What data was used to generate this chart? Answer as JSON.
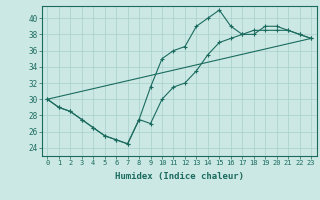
{
  "xlabel": "Humidex (Indice chaleur)",
  "bg_color": "#cce8e5",
  "line_color": "#1a6b5e",
  "grid_color": "#a8d0cc",
  "xlim": [
    -0.5,
    23.5
  ],
  "ylim": [
    23.0,
    41.5
  ],
  "xticks": [
    0,
    1,
    2,
    3,
    4,
    5,
    6,
    7,
    8,
    9,
    10,
    11,
    12,
    13,
    14,
    15,
    16,
    17,
    18,
    19,
    20,
    21,
    22,
    23
  ],
  "yticks": [
    24,
    26,
    28,
    30,
    32,
    34,
    36,
    38,
    40
  ],
  "series1_x": [
    0,
    1,
    2,
    3,
    4,
    5,
    6,
    7,
    8,
    9,
    10,
    11,
    12,
    13,
    14,
    15,
    16,
    17,
    18,
    19,
    20,
    21,
    22,
    23
  ],
  "series1_y": [
    30,
    29,
    28.5,
    27.5,
    26.5,
    25.5,
    25,
    24.5,
    27.5,
    31.5,
    35,
    36,
    36.5,
    39,
    40,
    41,
    39,
    38,
    38,
    39,
    39,
    38.5,
    38,
    37.5
  ],
  "series2_x": [
    0,
    1,
    2,
    3,
    4,
    5,
    6,
    7,
    8,
    9,
    10,
    11,
    12,
    13,
    14,
    15,
    16,
    17,
    18,
    19,
    20,
    21,
    22,
    23
  ],
  "series2_y": [
    30,
    29,
    28.5,
    27.5,
    26.5,
    25.5,
    25,
    24.5,
    27.5,
    27.0,
    30.0,
    31.5,
    32.0,
    33.5,
    35.5,
    37.0,
    37.5,
    38.0,
    38.5,
    38.5,
    38.5,
    38.5,
    38.0,
    37.5
  ],
  "series3_x": [
    0,
    23
  ],
  "series3_y": [
    30,
    37.5
  ]
}
